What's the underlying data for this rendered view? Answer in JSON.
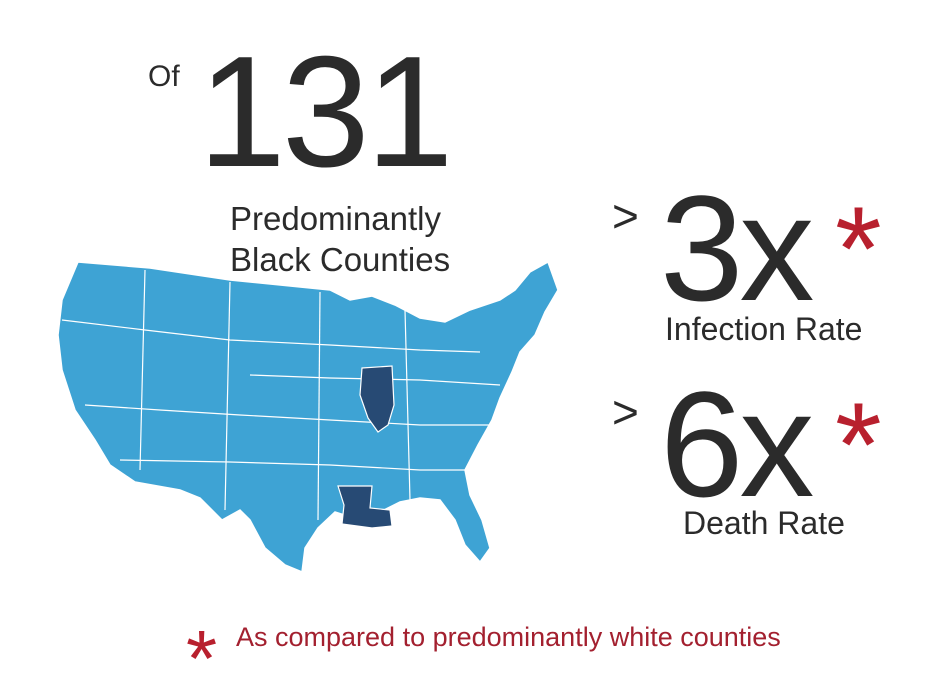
{
  "headline": {
    "prefix": "Of",
    "number": "131",
    "caption_lines": [
      "Predominantly",
      "Black Counties"
    ]
  },
  "stats": [
    {
      "prefix": ">",
      "value": "3x",
      "marker": "*",
      "label": "Infection Rate"
    },
    {
      "prefix": ">",
      "value": "6x",
      "marker": "*",
      "label": "Death Rate"
    }
  ],
  "footnote": {
    "marker": "*",
    "text": "As compared to predominantly white counties"
  }
}
